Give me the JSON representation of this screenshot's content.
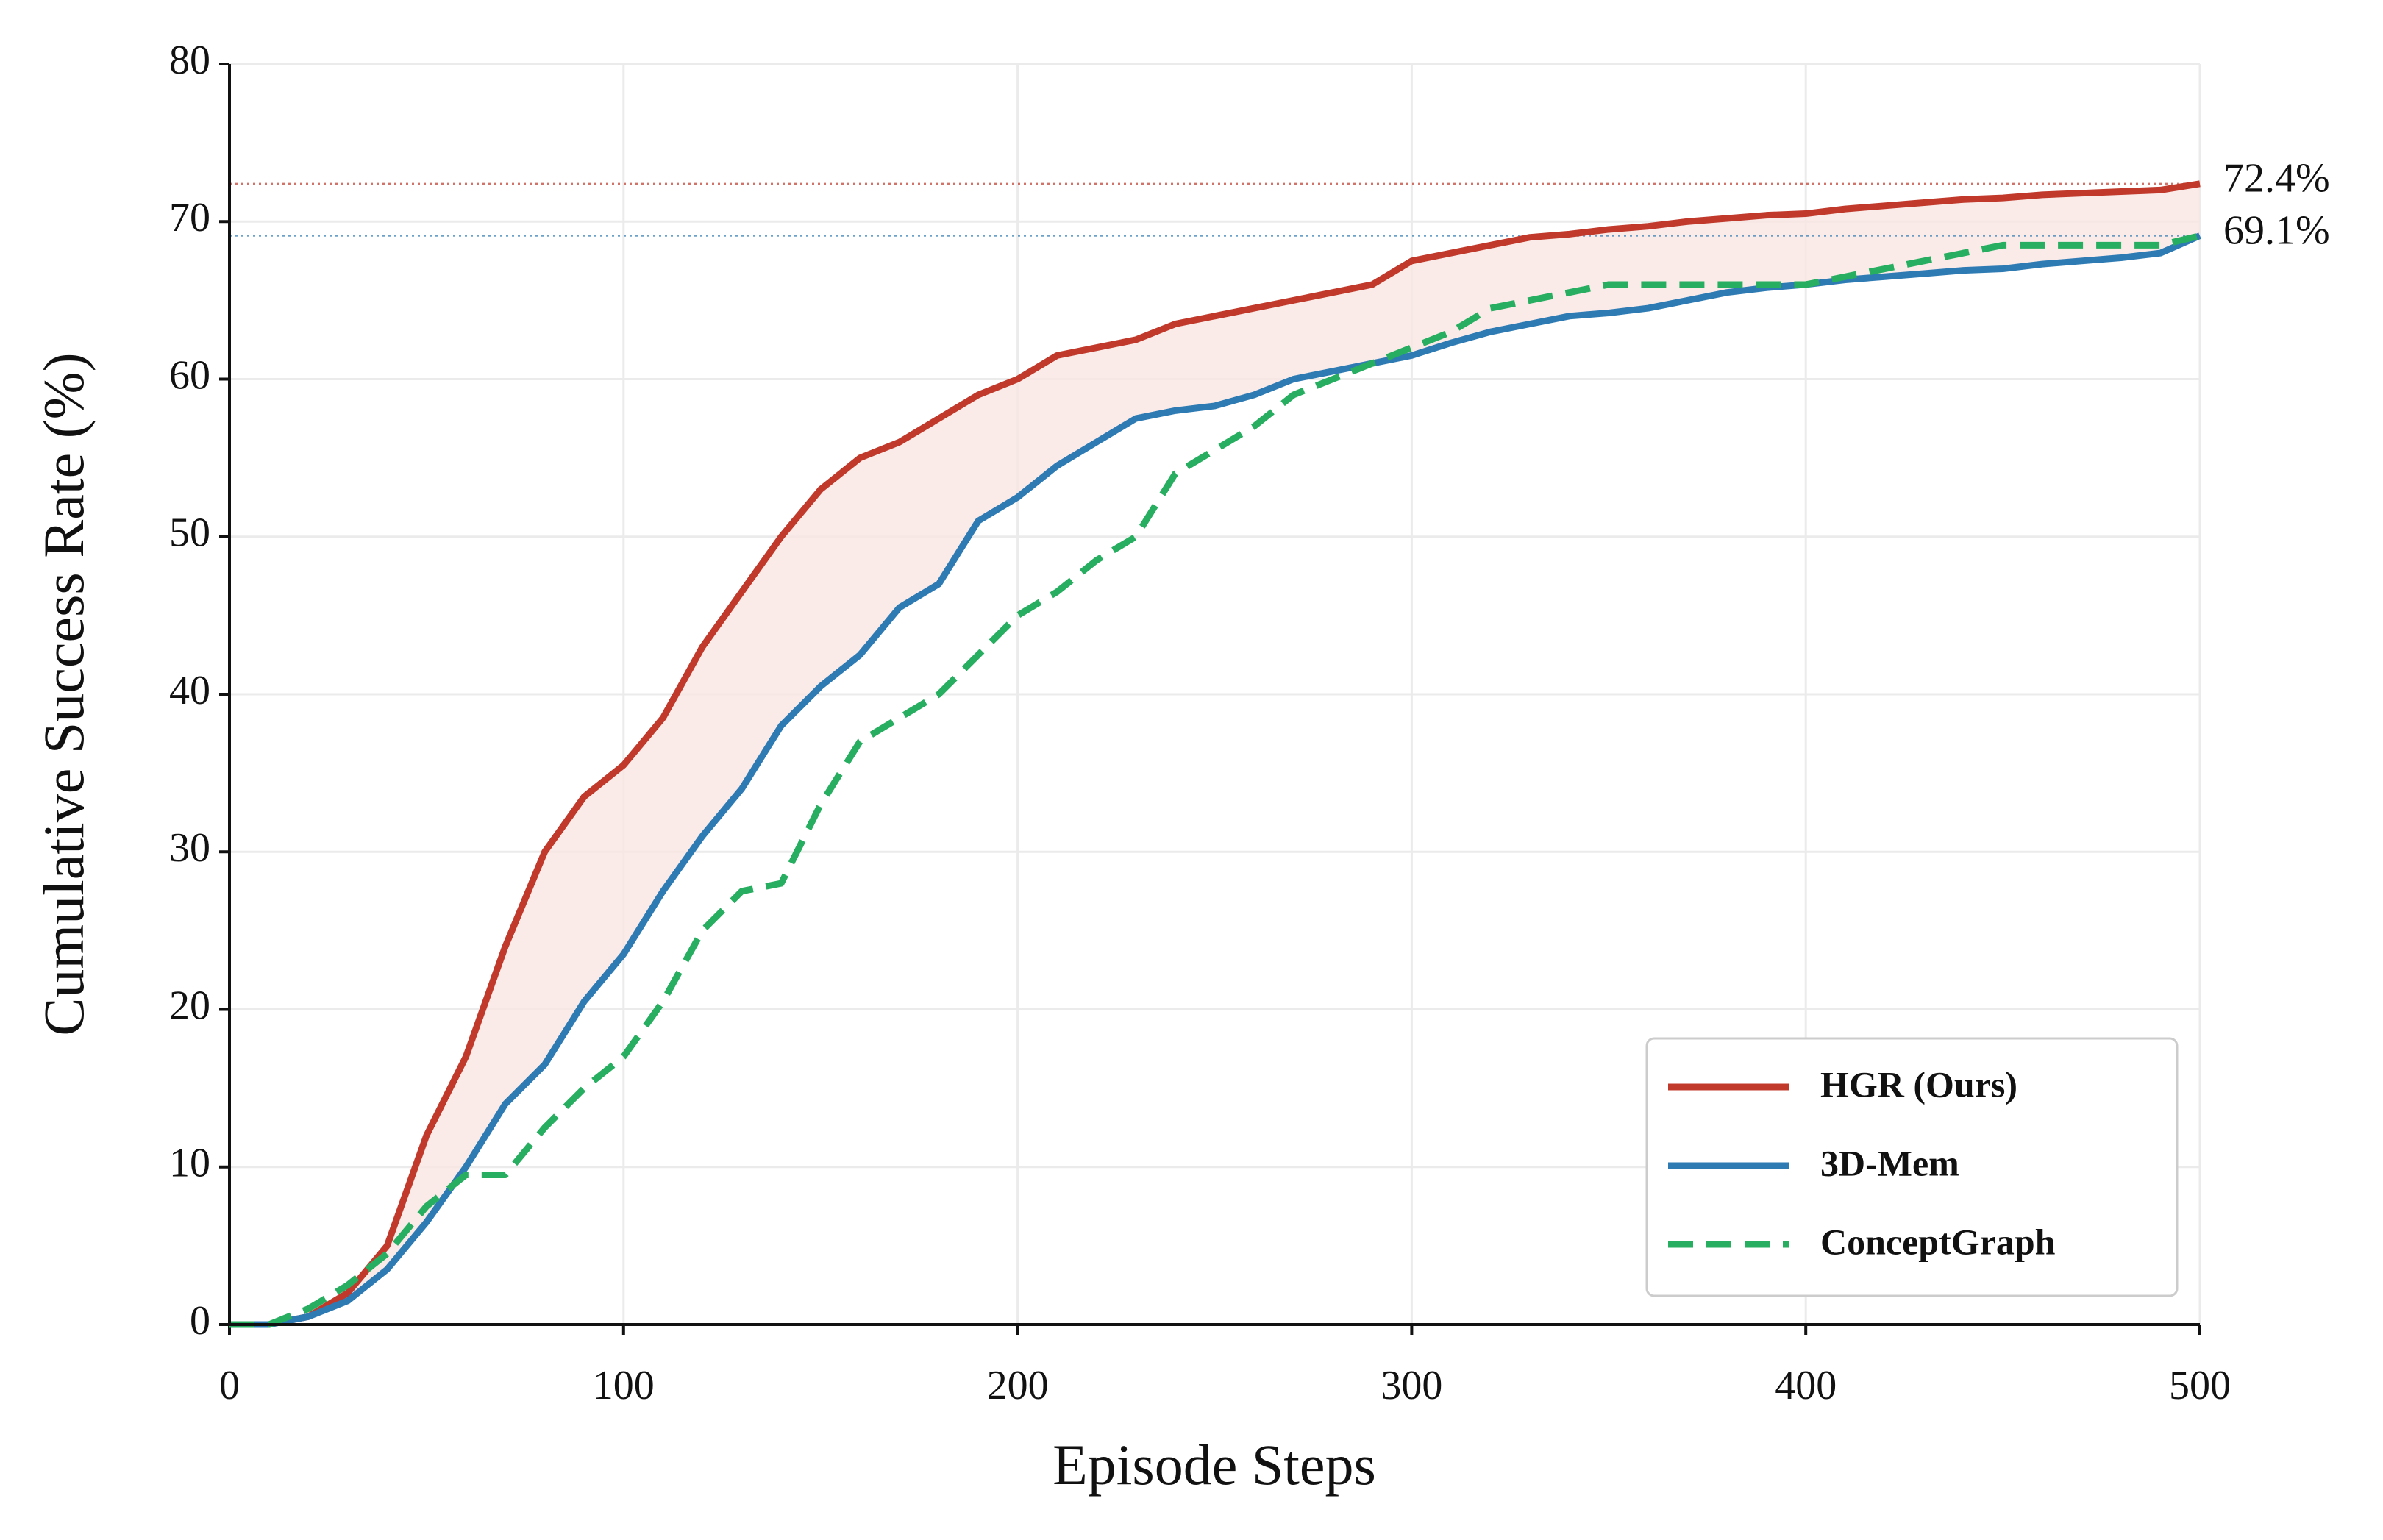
{
  "chart_data": {
    "type": "line",
    "xlabel": "Episode Steps",
    "ylabel": "Cumulative Success Rate (%)",
    "x": [
      0,
      10,
      20,
      30,
      40,
      50,
      60,
      70,
      80,
      90,
      100,
      110,
      120,
      130,
      140,
      150,
      160,
      170,
      180,
      190,
      200,
      210,
      220,
      230,
      240,
      250,
      260,
      270,
      280,
      290,
      300,
      310,
      320,
      330,
      340,
      350,
      360,
      370,
      380,
      390,
      400,
      410,
      420,
      430,
      440,
      450,
      460,
      470,
      480,
      490,
      500
    ],
    "series": [
      {
        "name": "HGR (Ours)",
        "color": "#c0392b",
        "dash": false,
        "values": [
          0,
          0,
          0.5,
          2,
          5,
          12,
          17,
          24,
          30,
          33.5,
          35.5,
          38.5,
          43,
          46.5,
          50,
          53,
          55,
          56,
          57.5,
          59,
          60,
          61.5,
          62,
          62.5,
          63.5,
          64,
          64.5,
          65,
          65.5,
          66,
          67.5,
          68,
          68.5,
          69,
          69.2,
          69.5,
          69.7,
          70,
          70.2,
          70.4,
          70.5,
          70.8,
          71,
          71.2,
          71.4,
          71.5,
          71.7,
          71.8,
          71.9,
          72,
          72.4
        ]
      },
      {
        "name": "3D-Mem",
        "color": "#2e7bb4",
        "dash": false,
        "values": [
          0,
          0,
          0.5,
          1.5,
          3.5,
          6.5,
          10,
          14,
          16.5,
          20.5,
          23.5,
          27.5,
          31,
          34,
          38,
          40.5,
          42.5,
          45.5,
          47,
          51,
          52.5,
          54.5,
          56,
          57.5,
          58,
          58.3,
          59,
          60,
          60.5,
          61,
          61.5,
          62.3,
          63,
          63.5,
          64,
          64.2,
          64.5,
          65,
          65.5,
          65.8,
          66,
          66.3,
          66.5,
          66.7,
          66.9,
          67,
          67.3,
          67.5,
          67.7,
          68,
          69.1
        ]
      },
      {
        "name": "ConceptGraph",
        "color": "#27ae60",
        "dash": true,
        "values": [
          0,
          0,
          1,
          2.5,
          4.5,
          7.5,
          9.5,
          9.5,
          12.5,
          15,
          17,
          20.5,
          25,
          27.5,
          28,
          33,
          37,
          38.5,
          40,
          42.5,
          45,
          46.5,
          48.5,
          50,
          54,
          55.5,
          57,
          59,
          60,
          61,
          62,
          63,
          64.5,
          65,
          65.5,
          66,
          66,
          66,
          66,
          66,
          66,
          66.5,
          67,
          67.5,
          68,
          68.5,
          68.5,
          68.5,
          68.5,
          68.5,
          69.1
        ]
      }
    ],
    "fill_between": [
      0,
      1
    ],
    "fill_color": "#f9e6e4",
    "annotations": [
      {
        "value": 72.4,
        "label": "72.4%",
        "color": "#c0392b"
      },
      {
        "value": 69.1,
        "label": "69.1%",
        "color": "#2e7bb4"
      }
    ],
    "xlim": [
      0,
      500
    ],
    "xticks": [
      0,
      100,
      200,
      300,
      400,
      500
    ],
    "ylim": [
      0,
      80
    ],
    "yticks": [
      0,
      10,
      20,
      30,
      40,
      50,
      60,
      70,
      80
    ],
    "grid": true,
    "legend": "lower right"
  }
}
